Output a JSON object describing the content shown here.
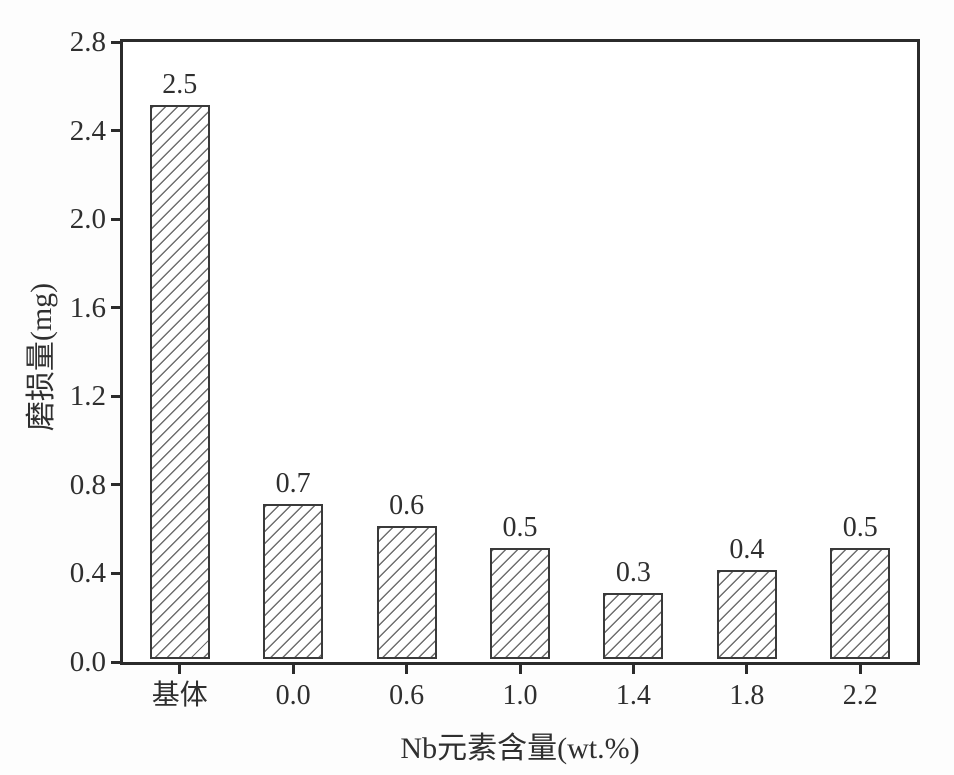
{
  "figure": {
    "background": "#fdfdfd",
    "axis_color": "#2b2b2b",
    "text_color": "#2f2f2f",
    "bar_fill": "#ffffff",
    "bar_border_color": "#3a3a3a",
    "hatch_color": "#6e6e6e",
    "hatch_style": "diagonal-forward-slash"
  },
  "chart_data": {
    "type": "bar",
    "title": "",
    "xlabel": "Nb元素含量(wt.%)",
    "ylabel": "磨损量(mg)",
    "categories": [
      "基体",
      "0.0",
      "0.6",
      "1.0",
      "1.4",
      "1.8",
      "2.2"
    ],
    "values": [
      2.5,
      0.7,
      0.6,
      0.5,
      0.3,
      0.4,
      0.5
    ],
    "bar_labels": [
      "2.5",
      "0.7",
      "0.6",
      "0.5",
      "0.3",
      "0.4",
      "0.5"
    ],
    "ylim": [
      0.0,
      2.8
    ],
    "ytick_step": 0.4,
    "ytick_labels": [
      "0.0",
      "0.4",
      "0.8",
      "1.2",
      "1.6",
      "2.0",
      "2.4",
      "2.8"
    ],
    "grid": "off",
    "legend": "none"
  }
}
